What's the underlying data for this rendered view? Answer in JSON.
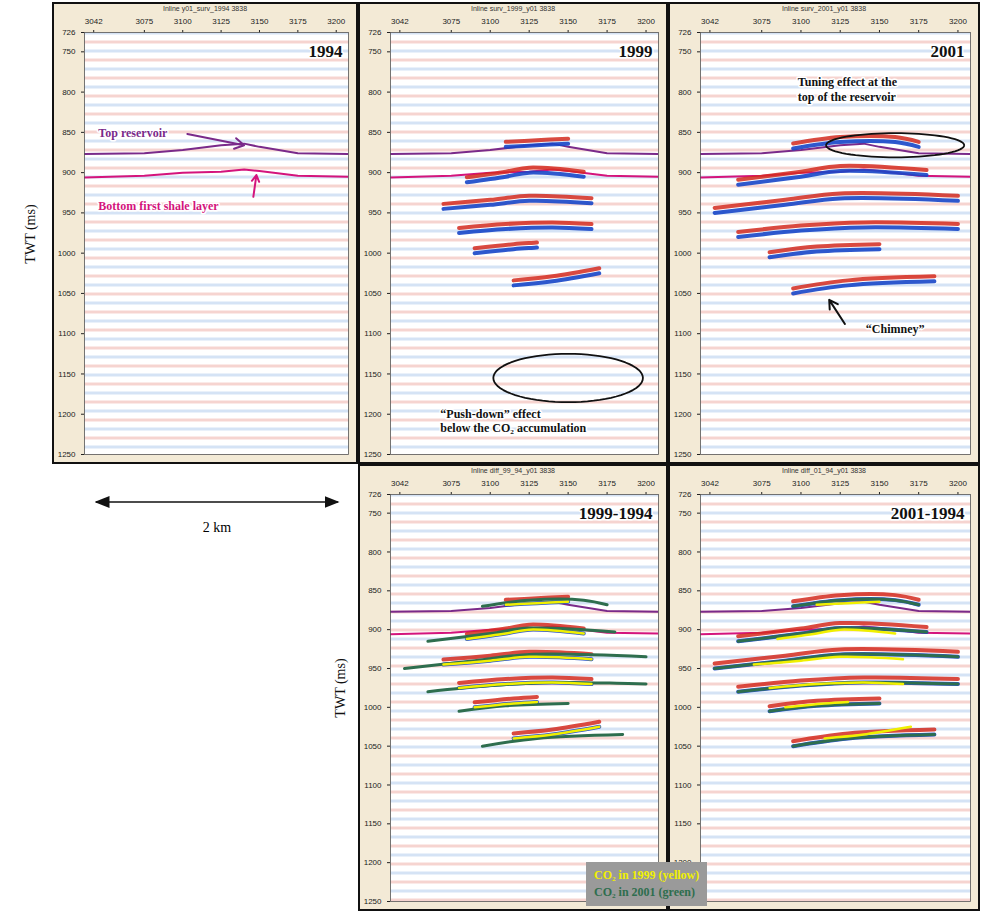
{
  "chart_data": {
    "type": "seismic_sections",
    "y_label": "TWT (ms)",
    "xlim": [
      3036,
      3208
    ],
    "xticks": [
      3042,
      3075,
      3100,
      3125,
      3150,
      3175,
      3200
    ],
    "ylim": [
      726,
      1250
    ],
    "yticks": [
      726,
      750,
      800,
      850,
      900,
      950,
      1000,
      1050,
      1100,
      1150,
      1200,
      1250
    ],
    "scale_bar": "2 km",
    "legend": "bottom",
    "horizons": [
      {
        "color": "#7a2a8a",
        "x": [
          3036,
          3075,
          3100,
          3125,
          3140,
          3150,
          3175,
          3208
        ],
        "values": [
          877,
          876,
          872,
          866,
          864,
          868,
          876,
          877
        ]
      },
      {
        "color": "#d4147c",
        "x": [
          3036,
          3075,
          3100,
          3125,
          3140,
          3150,
          3175,
          3208
        ],
        "values": [
          906,
          904,
          900,
          899,
          896,
          898,
          904,
          905
        ]
      }
    ],
    "co2_layers": [
      {
        "name": "CO₂ in 1999 (yellow)",
        "color": "#f0f000",
        "segments": [
          {
            "x": [
              3110,
              3130,
              3150
            ],
            "values": [
              868,
              866,
              864
            ]
          },
          {
            "x": [
              3085,
              3110,
              3125,
              3160
            ],
            "values": [
              912,
              905,
              900,
              905
            ]
          },
          {
            "x": [
              3070,
              3100,
              3125,
              3165
            ],
            "values": [
              945,
              940,
              935,
              938
            ]
          },
          {
            "x": [
              3080,
              3110,
              3140,
              3165
            ],
            "values": [
              975,
              970,
              968,
              970
            ]
          },
          {
            "x": [
              3090,
              3115,
              3130
            ],
            "values": [
              1000,
              995,
              993
            ]
          },
          {
            "x": [
              3115,
              3140,
              3170
            ],
            "values": [
              1040,
              1035,
              1025
            ]
          }
        ]
      },
      {
        "name": "CO₂ in 2001 (green)",
        "color": "#2e6e4e",
        "segments": [
          {
            "x": [
              3095,
              3125,
              3160,
              3175
            ],
            "values": [
              870,
              862,
              862,
              868
            ]
          },
          {
            "x": [
              3060,
              3100,
              3125,
              3180
            ],
            "values": [
              915,
              905,
              898,
              903
            ]
          },
          {
            "x": [
              3045,
              3090,
              3125,
              3200
            ],
            "values": [
              950,
              940,
              932,
              935
            ]
          },
          {
            "x": [
              3060,
              3100,
              3140,
              3200
            ],
            "values": [
              980,
              972,
              968,
              970
            ]
          },
          {
            "x": [
              3080,
              3110,
              3150
            ],
            "values": [
              1005,
              998,
              995
            ]
          },
          {
            "x": [
              3095,
              3130,
              3185
            ],
            "values": [
              1050,
              1040,
              1035
            ]
          }
        ]
      }
    ],
    "panels": [
      {
        "header": "Inline y01_surv_1994 3838",
        "title": "1994",
        "bands": null,
        "picks": [],
        "annotations": [
          {
            "lines": [
              "Top reservoir"
            ],
            "color": "#7a2a8a"
          },
          {
            "lines": [
              "Bottom first shale layer"
            ],
            "color": "#d4147c"
          }
        ]
      },
      {
        "header": "Inline surv_1999_y01 3838",
        "title": "1999",
        "bands": "CO₂ in 1999 (yellow)",
        "picks": [],
        "annotations": [
          {
            "lines": [
              "“Push-down” effect",
              "below the CO₂ accumulation"
            ],
            "color": "#111111"
          }
        ]
      },
      {
        "header": "Inline surv_2001_y01 3838",
        "title": "2001",
        "bands": "CO₂ in 2001 (green)",
        "picks": [],
        "annotations": [
          {
            "lines": [
              "Tuning effect at the",
              "top of the reservoir"
            ],
            "color": "#111111"
          },
          {
            "lines": [
              "“Chimney”"
            ],
            "color": "#111111"
          }
        ]
      },
      {
        "header": "Inline diff_99_94_y01 3838",
        "title": "1999-1994",
        "bands": "CO₂ in 1999 (yellow)",
        "picks": [
          "CO₂ in 1999 (yellow)",
          "CO₂ in 2001 (green)"
        ],
        "annotations": []
      },
      {
        "header": "Inline diff_01_94_y01 3838",
        "title": "2001-1994",
        "bands": "CO₂ in 2001 (green)",
        "picks": [
          "CO₂ in 1999 (yellow)",
          "CO₂ in 2001 (green)"
        ],
        "annotations": []
      }
    ]
  }
}
